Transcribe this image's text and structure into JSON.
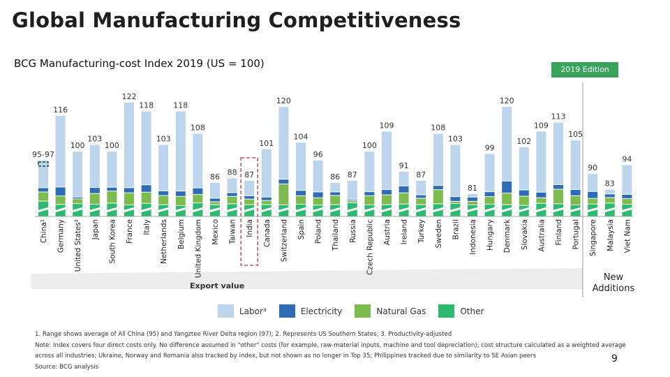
{
  "page": {
    "title": "Global Manufacturing Competitiveness",
    "subtitle": "BCG Manufacturing-cost Index 2019 (US = 100)",
    "edition_badge": "2019 Edition",
    "new_additions_label": [
      "New",
      "Additions"
    ],
    "export_value_label": "Export value",
    "page_number": "9",
    "footnotes": [
      "1. Range shows average of All China (95) and Yangztee River Delta region (97); 2. Represents US Southern States; 3. Productivity-adjusted",
      "Note: Index covers four direct costs only. No difference assumed in \"other\" costs (for example, raw-material inputs, machine and tool depreciation); cost structure calculated as a weighted average across all industries; Ukraine, Norway and Romania also tracked by index, but not shown as no longer in Top 35; Philippines tracked due to similarity to SE Asian peers",
      "Source: BCG analysis"
    ]
  },
  "colors": {
    "labor": "#bcd5ec",
    "electricity": "#2e6db4",
    "natural_gas": "#7dbb4f",
    "other": "#2dba70",
    "badge": "#3aa35b",
    "highlight_box": "#c0505a"
  },
  "chart_data": {
    "type": "bar",
    "stacked": true,
    "axis_break": true,
    "ylim": [
      71,
      125
    ],
    "grid": false,
    "legend_placement": "bottom",
    "highlighted_category": "India",
    "new_additions": [
      "Singapore",
      "Malaysia",
      "Viet Nam"
    ],
    "categories": [
      "China¹",
      "Germany",
      "United States²",
      "Japan",
      "South Korea",
      "France",
      "Italy",
      "Netherlands",
      "Belgium",
      "United Kingdom",
      "Mexico",
      "Taiwan",
      "India",
      "Canada",
      "Switzerland",
      "Spain",
      "Poland",
      "Thailand",
      "Russia",
      "Czech Republic",
      "Austria",
      "Ireland",
      "Turkey",
      "Sweden",
      "Brazil",
      "Indonesia",
      "Hungary",
      "Denmark",
      "Slovakia",
      "Australia",
      "Finland",
      "Portugal",
      "Singapore",
      "Malaysia",
      "Viet Nam"
    ],
    "data_labels": [
      "95-97",
      "116",
      "100",
      "103",
      "100",
      "122",
      "118",
      "103",
      "118",
      "108",
      "86",
      "88",
      "87",
      "101",
      "120",
      "104",
      "96",
      "86",
      "87",
      "100",
      "109",
      "91",
      "87",
      "108",
      "103",
      "81",
      "99",
      "120",
      "102",
      "109",
      "113",
      "105",
      "90",
      "83",
      "94"
    ],
    "totals": [
      96,
      116,
      100,
      103,
      100,
      122,
      118,
      103,
      118,
      108,
      86,
      88,
      87,
      101,
      120,
      104,
      96,
      86,
      87,
      100,
      109,
      91,
      87,
      108,
      103,
      81,
      99,
      120,
      102,
      109,
      113,
      105,
      90,
      83,
      94
    ],
    "series": [
      {
        "name": "Other",
        "key": "other",
        "values": [
          77.7,
          76.2,
          76.6,
          76.3,
          76.8,
          76,
          76.7,
          76.1,
          75.7,
          76.9,
          76.1,
          76.5,
          76.1,
          76.1,
          76,
          76.3,
          75.9,
          76.1,
          77,
          76,
          76.1,
          76.4,
          76.1,
          76.5,
          76.6,
          76,
          76.3,
          76.1,
          75.8,
          76.7,
          76.5,
          76,
          76.4,
          76.8,
          76.3
        ]
      },
      {
        "name": "Natural Gas",
        "key": "natural_gas",
        "values": [
          4.1,
          3.8,
          2.1,
          4.8,
          5.4,
          5.4,
          5,
          4.1,
          4.1,
          3.8,
          1.3,
          3.3,
          2.5,
          1.9,
          9.4,
          3.8,
          3.3,
          4.1,
          0.9,
          4.1,
          4.4,
          5,
          2.9,
          6.3,
          1,
          1.6,
          3.4,
          5.2,
          4.1,
          2.5,
          6.5,
          4.1,
          2.5,
          2.5,
          2.5
        ]
      },
      {
        "name": "Electricity",
        "key": "electricity",
        "values": [
          1.9,
          4,
          0.8,
          2.7,
          1.7,
          2.3,
          3.3,
          2.1,
          2.4,
          2.9,
          1.6,
          1.7,
          1.5,
          1.5,
          2.1,
          2.4,
          2.6,
          1.6,
          0.6,
          1.8,
          2.4,
          3.1,
          1.5,
          1.9,
          2.1,
          1.9,
          2.2,
          5.4,
          2.8,
          2.5,
          2.1,
          2.8,
          3.1,
          1.6,
          1.9
        ]
      },
      {
        "name": "Labor³",
        "key": "labor",
        "values": [
          12.3,
          32,
          20.5,
          19.2,
          16.1,
          38.3,
          33,
          20.7,
          35.8,
          24.4,
          7,
          6.5,
          6.9,
          21.5,
          32.5,
          21.5,
          14.2,
          4.2,
          8.5,
          18.1,
          26.1,
          6.5,
          6.5,
          23.3,
          23.3,
          1.5,
          17.1,
          33.3,
          19.3,
          27.3,
          27.9,
          22.1,
          8,
          2.1,
          13.3
        ]
      }
    ],
    "legend": [
      "Labor³",
      "Electricity",
      "Natural Gas",
      "Other"
    ]
  }
}
